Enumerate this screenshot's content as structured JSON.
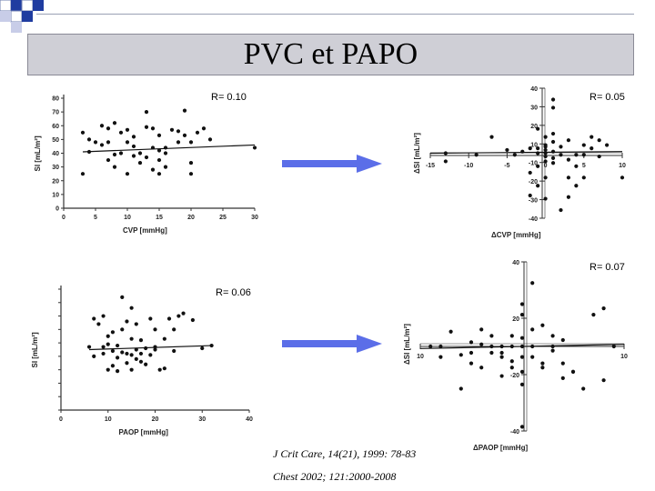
{
  "slide": {
    "title": "PVC et PAPO",
    "r_top_left": "R= 0.10",
    "r_top_right": "R= 0.05",
    "r_bottom_left": "R= 0.06",
    "r_bottom_right": "R= 0.07",
    "ref1": "J Crit Care, 14(21), 1999: 78-83",
    "ref2": "Chest 2002; 121:2000-2008",
    "colors": {
      "title_bar": "#cfcfd6",
      "arrow": "#5b6ee8",
      "deco_blue": "#1f3ca0"
    }
  },
  "chart_data": [
    {
      "type": "scatter",
      "xlabel": "CVP [mmHg]",
      "ylabel": "SI [mL/m²]",
      "xlim": [
        0,
        30
      ],
      "ylim": [
        0,
        80
      ],
      "xticks": [
        "0",
        "5",
        "10",
        "15",
        "20",
        "25",
        "30"
      ],
      "yticks": [
        "0",
        "10",
        "20",
        "30",
        "40",
        "50",
        "60",
        "70",
        "80"
      ],
      "trend": [
        [
          3,
          41
        ],
        [
          30,
          46
        ]
      ],
      "points": [
        [
          3,
          55
        ],
        [
          3,
          25
        ],
        [
          4,
          50
        ],
        [
          4,
          41
        ],
        [
          5,
          48
        ],
        [
          6,
          46
        ],
        [
          6,
          60
        ],
        [
          7,
          35
        ],
        [
          7,
          58
        ],
        [
          7,
          48
        ],
        [
          8,
          30
        ],
        [
          8,
          62
        ],
        [
          8,
          39
        ],
        [
          9,
          40
        ],
        [
          9,
          55
        ],
        [
          10,
          25
        ],
        [
          10,
          48
        ],
        [
          10,
          57
        ],
        [
          11,
          45
        ],
        [
          11,
          38
        ],
        [
          11,
          52
        ],
        [
          12,
          33
        ],
        [
          12,
          40
        ],
        [
          13,
          70
        ],
        [
          13,
          37
        ],
        [
          13,
          59
        ],
        [
          14,
          44
        ],
        [
          14,
          58
        ],
        [
          14,
          28
        ],
        [
          15,
          42
        ],
        [
          15,
          35
        ],
        [
          15,
          25
        ],
        [
          15,
          53
        ],
        [
          16,
          44
        ],
        [
          16,
          30
        ],
        [
          16,
          40
        ],
        [
          17,
          57
        ],
        [
          18,
          48
        ],
        [
          18,
          56
        ],
        [
          19,
          53
        ],
        [
          19,
          71
        ],
        [
          20,
          48
        ],
        [
          20,
          33
        ],
        [
          20,
          25
        ],
        [
          21,
          55
        ],
        [
          22,
          58
        ],
        [
          23,
          50
        ],
        [
          30,
          44
        ]
      ]
    },
    {
      "type": "scatter",
      "xlabel": "ΔCVP [mmHg]",
      "ylabel": "ΔSI [mL/m²]",
      "xlim": [
        -15,
        10
      ],
      "ylim": [
        -40,
        40
      ],
      "xticks": [
        "-15",
        "-10",
        "-5",
        "0",
        "5",
        "10"
      ],
      "yticks": [
        "40",
        "30",
        "20",
        "10",
        "-10",
        "-20",
        "-30",
        "-40"
      ],
      "trend": [
        [
          -15,
          0
        ],
        [
          10,
          1
        ]
      ],
      "points": [
        [
          -13,
          -5
        ],
        [
          -9,
          -1
        ],
        [
          -7,
          10
        ],
        [
          -5,
          2
        ],
        [
          -4,
          -1
        ],
        [
          -3,
          1
        ],
        [
          -2,
          3
        ],
        [
          -2,
          -12
        ],
        [
          -1,
          0
        ],
        [
          -1,
          15
        ],
        [
          -1,
          3
        ],
        [
          -1,
          -8
        ],
        [
          -1,
          -20
        ],
        [
          0,
          5
        ],
        [
          0,
          0
        ],
        [
          0,
          -5
        ],
        [
          0,
          -2
        ],
        [
          0,
          2
        ],
        [
          0,
          10
        ],
        [
          0,
          -15
        ],
        [
          0,
          -28
        ],
        [
          0,
          4
        ],
        [
          1,
          1
        ],
        [
          1,
          -3
        ],
        [
          1,
          7
        ],
        [
          1,
          -6
        ],
        [
          1,
          33
        ],
        [
          1,
          12
        ],
        [
          2,
          -1
        ],
        [
          2,
          4
        ],
        [
          3,
          -15
        ],
        [
          3,
          -4
        ],
        [
          3,
          8
        ],
        [
          4,
          -1
        ],
        [
          4,
          -8
        ],
        [
          4,
          -20
        ],
        [
          5,
          -1
        ],
        [
          5,
          5
        ],
        [
          5,
          -15
        ],
        [
          6,
          3
        ],
        [
          6,
          10
        ],
        [
          7,
          -2
        ],
        [
          7,
          8
        ],
        [
          8,
          5
        ],
        [
          10,
          -15
        ],
        [
          -13,
          0
        ],
        [
          2,
          -35
        ],
        [
          -2,
          -26
        ],
        [
          1,
          28
        ],
        [
          3,
          -27
        ]
      ]
    },
    {
      "type": "scatter",
      "xlabel": "PAOP [mmHg]",
      "ylabel": "SI [mL/m²]",
      "xlim": [
        0,
        40
      ],
      "ylim": [
        0,
        90
      ],
      "xticks": [
        "0",
        "10",
        "20",
        "30",
        "40"
      ],
      "yticks": [],
      "trend": [
        [
          6,
          45
        ],
        [
          32,
          48
        ]
      ],
      "points": [
        [
          6,
          47
        ],
        [
          7,
          40
        ],
        [
          7,
          68
        ],
        [
          8,
          64
        ],
        [
          9,
          70
        ],
        [
          10,
          55
        ],
        [
          10,
          30
        ],
        [
          10,
          49
        ],
        [
          11,
          33
        ],
        [
          11,
          44
        ],
        [
          11,
          58
        ],
        [
          12,
          39
        ],
        [
          12,
          48
        ],
        [
          13,
          43
        ],
        [
          13,
          60
        ],
        [
          14,
          42
        ],
        [
          14,
          66
        ],
        [
          14,
          35
        ],
        [
          15,
          41
        ],
        [
          15,
          53
        ],
        [
          15,
          30
        ],
        [
          16,
          45
        ],
        [
          16,
          64
        ],
        [
          16,
          38
        ],
        [
          17,
          42
        ],
        [
          17,
          52
        ],
        [
          18,
          46
        ],
        [
          18,
          34
        ],
        [
          19,
          41
        ],
        [
          19,
          68
        ],
        [
          20,
          45
        ],
        [
          20,
          47
        ],
        [
          21,
          30
        ],
        [
          22,
          31
        ],
        [
          23,
          68
        ],
        [
          24,
          44
        ],
        [
          25,
          70
        ],
        [
          32,
          48
        ],
        [
          9,
          42
        ],
        [
          12,
          29
        ],
        [
          17,
          36
        ],
        [
          24,
          60
        ],
        [
          26,
          72
        ],
        [
          30,
          46
        ],
        [
          20,
          60
        ],
        [
          13,
          84
        ],
        [
          9,
          47
        ],
        [
          28,
          67
        ],
        [
          22,
          53
        ],
        [
          15,
          76
        ]
      ]
    },
    {
      "type": "scatter",
      "xlabel": "ΔPAOP [mmHg]",
      "ylabel": "ΔSI [mL/m²]",
      "xlim": [
        -10,
        10
      ],
      "ylim": [
        -40,
        40
      ],
      "xticks": [
        "10",
        "10"
      ],
      "yticks": [
        "40",
        "20",
        "-20",
        "-40"
      ],
      "trend": [
        [
          -10,
          -1
        ],
        [
          10,
          1
        ]
      ],
      "points": [
        [
          -9,
          0
        ],
        [
          -8,
          0
        ],
        [
          -8,
          -5
        ],
        [
          -7,
          7
        ],
        [
          -6,
          -4
        ],
        [
          -6,
          -20
        ],
        [
          -5,
          2
        ],
        [
          -5,
          -8
        ],
        [
          -5,
          -3
        ],
        [
          -4,
          -10
        ],
        [
          -4,
          1
        ],
        [
          -4,
          8
        ],
        [
          -3,
          0
        ],
        [
          -3,
          5
        ],
        [
          -3,
          -3
        ],
        [
          -2,
          0
        ],
        [
          -2,
          -5
        ],
        [
          -2,
          -14
        ],
        [
          -2,
          -3
        ],
        [
          -1,
          -10
        ],
        [
          -1,
          5
        ],
        [
          -1,
          0
        ],
        [
          -1,
          -7
        ],
        [
          0,
          4
        ],
        [
          0,
          -5
        ],
        [
          0,
          -12
        ],
        [
          0,
          -18
        ],
        [
          0,
          0
        ],
        [
          0,
          15
        ],
        [
          0,
          20
        ],
        [
          1,
          30
        ],
        [
          1,
          8
        ],
        [
          1,
          -5
        ],
        [
          1,
          0
        ],
        [
          2,
          10
        ],
        [
          2,
          -8
        ],
        [
          2,
          -10
        ],
        [
          3,
          0
        ],
        [
          3,
          -2
        ],
        [
          3,
          5
        ],
        [
          4,
          -8
        ],
        [
          4,
          -15
        ],
        [
          4,
          3
        ],
        [
          5,
          -12
        ],
        [
          5,
          -12
        ],
        [
          6,
          -20
        ],
        [
          7,
          15
        ],
        [
          8,
          18
        ],
        [
          8,
          -16
        ],
        [
          9,
          0
        ],
        [
          0,
          -38
        ]
      ]
    }
  ]
}
